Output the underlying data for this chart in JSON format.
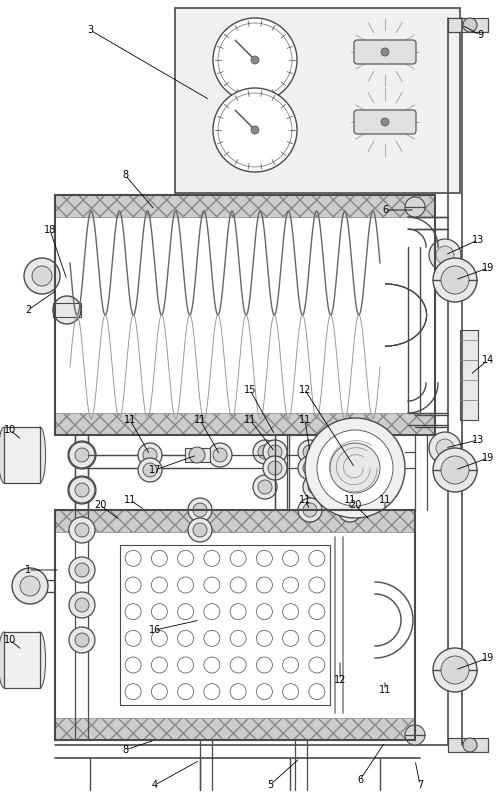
{
  "fig_width": 4.97,
  "fig_height": 7.95,
  "dpi": 100,
  "bg_color": "#ffffff",
  "line_color": "#4a4a4a",
  "gray1": "#888888",
  "gray2": "#aaaaaa",
  "gray3": "#cccccc",
  "hatch_fc": "#c8c8c8"
}
